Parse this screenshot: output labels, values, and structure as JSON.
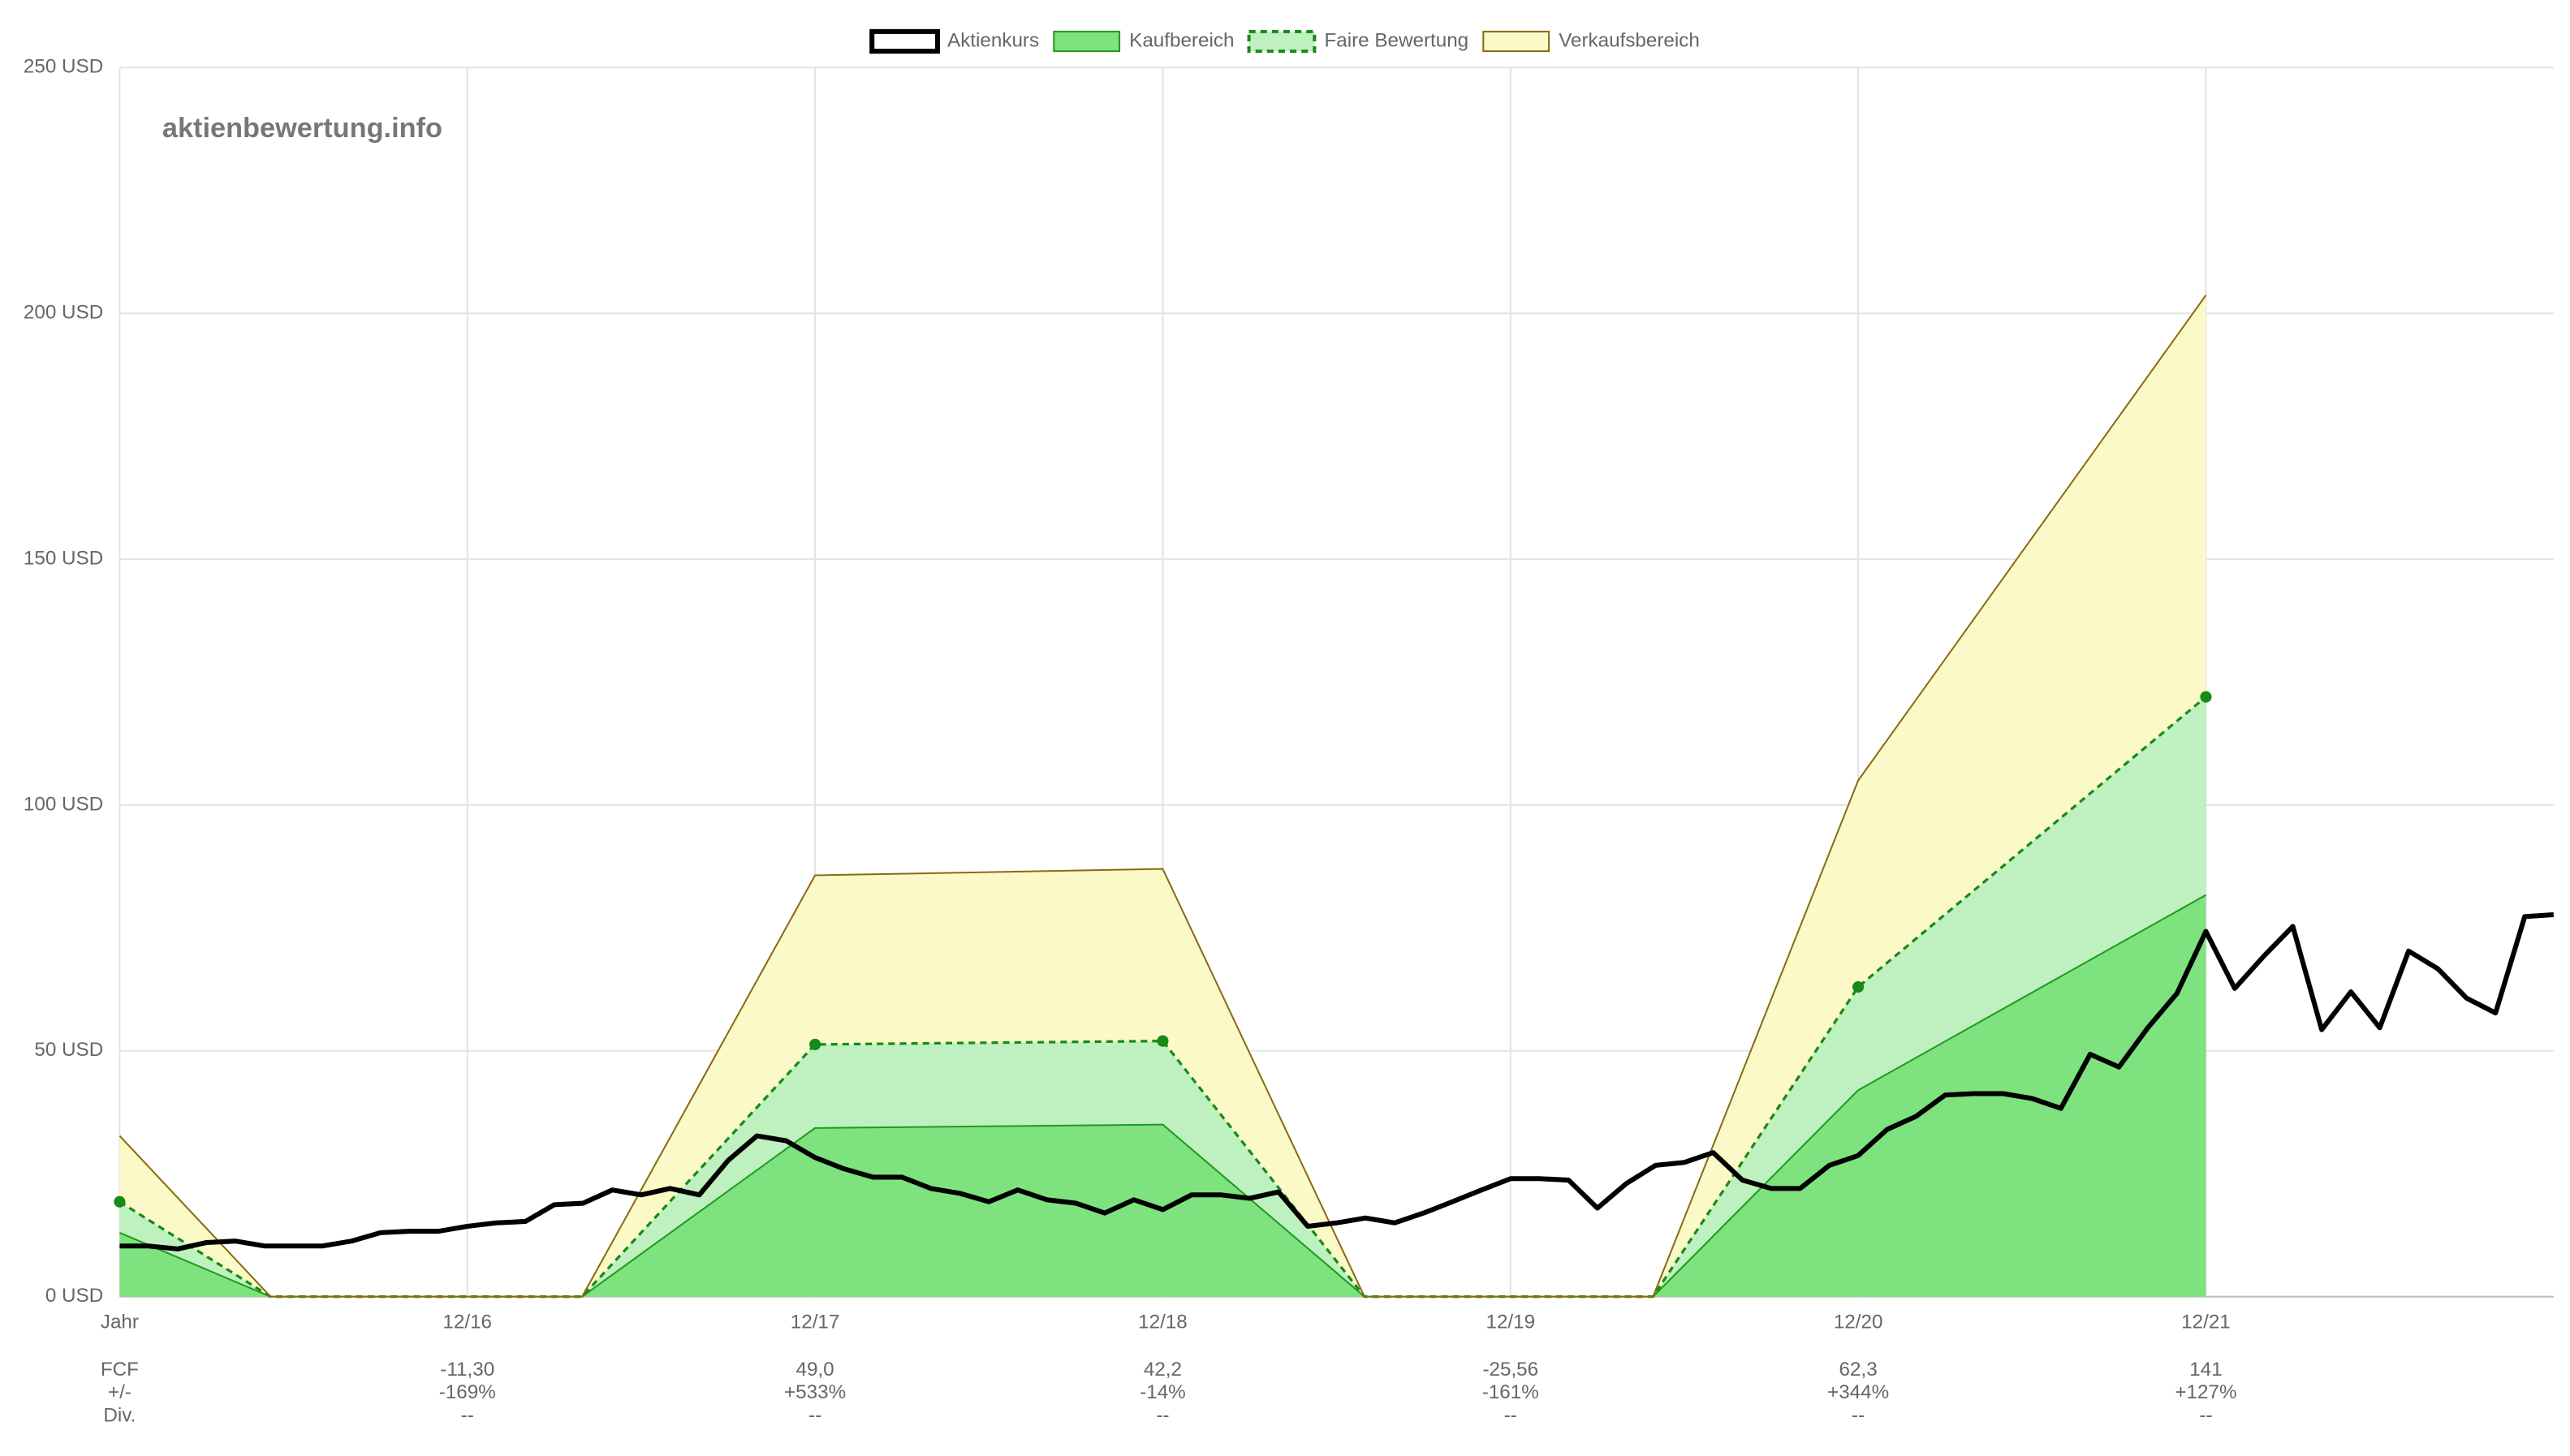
{
  "chart_data": {
    "type": "line",
    "watermark": "aktienbewertung.info",
    "legend": "top",
    "grid": true,
    "xlim": [
      2015,
      2022
    ],
    "xticks": [
      {
        "value": 2016,
        "label": "12/16"
      },
      {
        "value": 2017,
        "label": "12/17"
      },
      {
        "value": 2018,
        "label": "12/18"
      },
      {
        "value": 2019,
        "label": "12/19"
      },
      {
        "value": 2020,
        "label": "12/20"
      },
      {
        "value": 2021,
        "label": "12/21"
      }
    ],
    "ylim": [
      0,
      250
    ],
    "yticks": [
      {
        "value": 0,
        "label": "0 USD"
      },
      {
        "value": 50,
        "label": "50 USD"
      },
      {
        "value": 100,
        "label": "100 USD"
      },
      {
        "value": 150,
        "label": "150 USD"
      },
      {
        "value": 200,
        "label": "200 USD"
      },
      {
        "value": 250,
        "label": "250 USD"
      }
    ],
    "series": [
      {
        "name": "Aktienkurs",
        "color": "#000000",
        "x": [
          2015,
          2015.083,
          2015.167,
          2015.25,
          2015.333,
          2015.417,
          2015.5,
          2015.583,
          2015.667,
          2015.75,
          2015.833,
          2015.917,
          2016,
          2016.083,
          2016.167,
          2016.25,
          2016.333,
          2016.417,
          2016.5,
          2016.583,
          2016.667,
          2016.75,
          2016.833,
          2016.917,
          2017,
          2017.083,
          2017.167,
          2017.25,
          2017.333,
          2017.417,
          2017.5,
          2017.583,
          2017.667,
          2017.75,
          2017.833,
          2017.917,
          2018,
          2018.083,
          2018.167,
          2018.25,
          2018.333,
          2018.417,
          2018.5,
          2018.583,
          2018.667,
          2018.75,
          2018.833,
          2018.917,
          2019,
          2019.083,
          2019.167,
          2019.25,
          2019.333,
          2019.417,
          2019.5,
          2019.583,
          2019.667,
          2019.75,
          2019.833,
          2019.917,
          2020,
          2020.083,
          2020.167,
          2020.25,
          2020.333,
          2020.417,
          2020.5,
          2020.583,
          2020.667,
          2020.75,
          2020.833,
          2020.917,
          2021,
          2021.083,
          2021.167,
          2021.25,
          2021.333,
          2021.417,
          2021.5,
          2021.583,
          2021.667,
          2021.75,
          2021.833,
          2021.917,
          2022
        ],
        "values": [
          10.3,
          10.3,
          9.7,
          11,
          11.3,
          10.3,
          10.3,
          10.3,
          11.3,
          13,
          13.3,
          13.3,
          14.3,
          15,
          15.3,
          18.7,
          19,
          21.7,
          20.7,
          22,
          20.7,
          27.7,
          32.7,
          31.7,
          28.3,
          26,
          24.3,
          24.3,
          22,
          21,
          19.3,
          21.7,
          19.7,
          19,
          17,
          19.7,
          17.7,
          20.7,
          20.7,
          20,
          21.3,
          14.3,
          15,
          16,
          15,
          17,
          19.3,
          21.7,
          24,
          24,
          23.7,
          18,
          23,
          26.7,
          27.3,
          29.3,
          23.7,
          22,
          22,
          26.7,
          28.7,
          34,
          36.7,
          41,
          41.3,
          41.3,
          40.3,
          38.3,
          49.3,
          46.7,
          54.7,
          61.7,
          74.3,
          62.7,
          69.3,
          75.3,
          54.3,
          62,
          54.7,
          70.3,
          66.7,
          60.7,
          57.7,
          77.3,
          77.7
        ]
      },
      {
        "name": "Kaufbereich",
        "color": "#1f9a1f",
        "fill": "#7ee27e",
        "x": [
          2015,
          2015.434,
          2016.33,
          2017,
          2018,
          2018.58,
          2019.41,
          2020,
          2021
        ],
        "values": [
          13,
          0,
          0,
          34.3,
          35,
          0,
          0,
          42,
          81.7
        ]
      },
      {
        "name": "Faire Bewertung",
        "color": "#178a17",
        "fill": "#bff0bf",
        "dashed": true,
        "x": [
          2015,
          2015.434,
          2016.33,
          2017,
          2018,
          2018.58,
          2019.41,
          2020,
          2021
        ],
        "values": [
          19.3,
          0,
          0,
          51.3,
          52,
          0,
          0,
          63,
          122
        ]
      },
      {
        "name": "Verkaufsbereich",
        "color": "#8a6a10",
        "fill": "#faf9c7",
        "x": [
          2015,
          2015.434,
          2016.33,
          2017,
          2018,
          2018.58,
          2019.41,
          2020,
          2021
        ],
        "values": [
          32.7,
          0,
          0,
          85.7,
          87,
          0,
          0,
          105,
          203.7
        ]
      }
    ],
    "table": {
      "row_labels": [
        "Jahr",
        "FCF",
        "+/-",
        "Div."
      ],
      "rows": [
        [
          "-11,30",
          "49,0",
          "42,2",
          "-25,56",
          "62,3",
          "141"
        ],
        [
          "-169%",
          "+533%",
          "-14%",
          "-161%",
          "+344%",
          "+127%"
        ],
        [
          "--",
          "--",
          "--",
          "--",
          "--",
          "--"
        ]
      ]
    }
  }
}
